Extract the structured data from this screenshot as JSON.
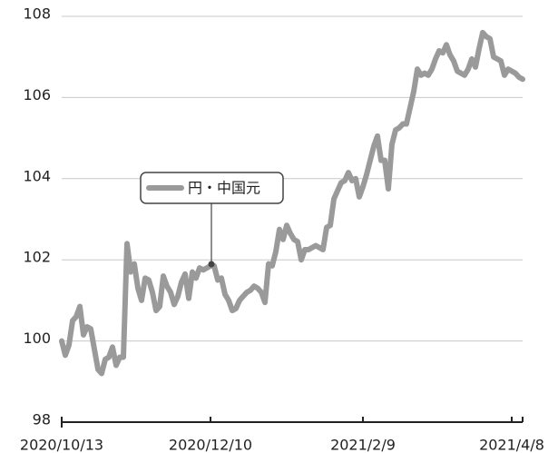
{
  "chart_data": {
    "type": "line",
    "categories": [
      "2020/10/13",
      null,
      null,
      null,
      null,
      null,
      null,
      null,
      null,
      null,
      null,
      null,
      null,
      null,
      null,
      null,
      null,
      null,
      null,
      null,
      null,
      null,
      null,
      null,
      null,
      null,
      null,
      null,
      null,
      null,
      null,
      null,
      null,
      null,
      null,
      null,
      null,
      null,
      null,
      null,
      null,
      "2020/12/10",
      null,
      null,
      null,
      null,
      null,
      null,
      null,
      null,
      null,
      null,
      null,
      null,
      null,
      null,
      null,
      null,
      null,
      null,
      null,
      null,
      null,
      null,
      null,
      null,
      null,
      null,
      null,
      null,
      null,
      null,
      null,
      null,
      null,
      null,
      null,
      null,
      null,
      null,
      null,
      null,
      null,
      "2021/2/9",
      null,
      null,
      null,
      null,
      null,
      null,
      null,
      null,
      null,
      null,
      null,
      null,
      null,
      null,
      null,
      null,
      null,
      null,
      null,
      null,
      null,
      null,
      null,
      null,
      null,
      null,
      null,
      null,
      null,
      null,
      null,
      null,
      null,
      null,
      null,
      null,
      null,
      null,
      null,
      null,
      "2021/4/8",
      null,
      null,
      null
    ],
    "series": [
      {
        "name": "円・中国元",
        "color": "#9a9a9a",
        "values": [
          100.0,
          99.65,
          99.9,
          100.5,
          100.6,
          100.85,
          100.15,
          100.35,
          100.3,
          99.8,
          99.3,
          99.2,
          99.55,
          99.6,
          99.85,
          99.4,
          99.6,
          99.6,
          102.4,
          101.7,
          101.9,
          101.3,
          101.0,
          101.55,
          101.5,
          101.2,
          100.75,
          100.85,
          101.6,
          101.35,
          101.2,
          100.9,
          101.1,
          101.45,
          101.65,
          101.05,
          101.7,
          101.55,
          101.8,
          101.75,
          101.8,
          101.85,
          101.85,
          101.5,
          101.55,
          101.15,
          101.0,
          100.75,
          100.8,
          101.0,
          101.1,
          101.2,
          101.25,
          101.35,
          101.3,
          101.2,
          100.95,
          101.9,
          101.85,
          102.2,
          102.75,
          102.5,
          102.85,
          102.65,
          102.5,
          102.45,
          102.0,
          102.25,
          102.25,
          102.3,
          102.35,
          102.3,
          102.25,
          102.8,
          102.85,
          103.5,
          103.7,
          103.9,
          103.95,
          104.15,
          103.95,
          104.0,
          103.55,
          103.8,
          104.1,
          104.45,
          104.8,
          105.05,
          104.45,
          104.45,
          103.75,
          104.85,
          105.2,
          105.25,
          105.35,
          105.35,
          105.75,
          106.15,
          106.7,
          106.55,
          106.6,
          106.55,
          106.7,
          106.95,
          107.15,
          107.1,
          107.3,
          107.05,
          106.9,
          106.65,
          106.6,
          106.55,
          106.7,
          106.95,
          106.75,
          107.2,
          107.6,
          107.5,
          107.45,
          107.0,
          106.95,
          106.9,
          106.55,
          106.7,
          106.65,
          106.6,
          106.5,
          106.45
        ]
      }
    ],
    "ylim": [
      98,
      108
    ],
    "yticks": [
      98,
      100,
      102,
      104,
      106,
      108
    ],
    "grid": true
  }
}
